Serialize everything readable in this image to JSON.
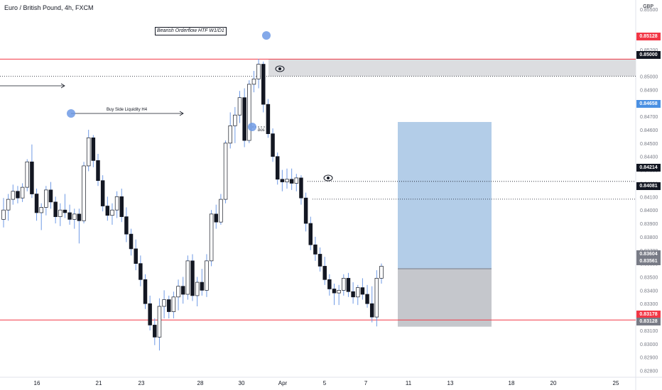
{
  "symbol_title": "Euro / British Pound, 4h, FXCM",
  "currency": "GBP",
  "annotations": {
    "bearish_orderflow": "Bearish Orderflow HTF W1/D1",
    "buy_side_liquidity": "Buy Side Liquidity H4",
    "bos": "bos"
  },
  "price_tags": {
    "red_top": "0.85128",
    "black_top": "0.85000",
    "blue": "0.84658",
    "black_mid1": "0.84214",
    "black_mid2": "0.84081",
    "gray_top": "0.83604",
    "gray_bottom": "0.83561",
    "red_bottom": "0.83178",
    "gray_low": "0.83128"
  },
  "colors": {
    "up_candle": "#ffffff",
    "down_candle": "#131722",
    "wick": "#6f9ae5",
    "red_line": "#f23645",
    "target_zone": "#b3cde8",
    "stop_zone": "#c5c7cc",
    "supply_zone": "#dcdde0",
    "circle_marker": "#6f9ae5"
  },
  "chart_data": {
    "type": "candlestick",
    "title": "Euro / British Pound, 4h, FXCM",
    "ylabel": "GBP",
    "ylim": [
      0.8275,
      0.8557
    ],
    "y_ticks": [
      "0.85500",
      "0.85200",
      "0.85000",
      "0.84900",
      "0.84800",
      "0.84700",
      "0.84600",
      "0.84500",
      "0.84400",
      "0.84300",
      "0.84200",
      "0.84100",
      "0.84000",
      "0.83900",
      "0.83800",
      "0.83700",
      "0.83600",
      "0.83500",
      "0.83400",
      "0.83300",
      "0.83200",
      "0.83100",
      "0.83000",
      "0.82900",
      "0.82800"
    ],
    "x_ticks": [
      "16",
      "21",
      "23",
      "28",
      "30",
      "Apr",
      "5",
      "7",
      "11",
      "13",
      "18",
      "20",
      "25"
    ],
    "horizontal_levels": {
      "upper_red": 0.85128,
      "black_dotted_upper": 0.85,
      "black_dotted_mid1": 0.84214,
      "black_dotted_mid2": 0.84081,
      "lower_red": 0.83178
    },
    "position_tool": {
      "entry": 0.83561,
      "target": 0.84658,
      "stop": 0.83128
    },
    "candles": [
      {
        "o": 0.8393,
        "h": 0.8409,
        "l": 0.8387,
        "c": 0.84
      },
      {
        "o": 0.84,
        "h": 0.8412,
        "l": 0.8392,
        "c": 0.8408
      },
      {
        "o": 0.8408,
        "h": 0.8419,
        "l": 0.8404,
        "c": 0.8414
      },
      {
        "o": 0.8414,
        "h": 0.8418,
        "l": 0.8405,
        "c": 0.8409
      },
      {
        "o": 0.8409,
        "h": 0.842,
        "l": 0.8406,
        "c": 0.8417
      },
      {
        "o": 0.8417,
        "h": 0.8438,
        "l": 0.8414,
        "c": 0.8436
      },
      {
        "o": 0.8436,
        "h": 0.8449,
        "l": 0.8409,
        "c": 0.8412
      },
      {
        "o": 0.8412,
        "h": 0.8416,
        "l": 0.8392,
        "c": 0.8398
      },
      {
        "o": 0.8398,
        "h": 0.8405,
        "l": 0.8385,
        "c": 0.8402
      },
      {
        "o": 0.8402,
        "h": 0.8418,
        "l": 0.8396,
        "c": 0.8415
      },
      {
        "o": 0.8415,
        "h": 0.8421,
        "l": 0.8401,
        "c": 0.8406
      },
      {
        "o": 0.8406,
        "h": 0.841,
        "l": 0.839,
        "c": 0.8395
      },
      {
        "o": 0.8395,
        "h": 0.8405,
        "l": 0.8388,
        "c": 0.84
      },
      {
        "o": 0.84,
        "h": 0.8412,
        "l": 0.8394,
        "c": 0.8398
      },
      {
        "o": 0.8398,
        "h": 0.8404,
        "l": 0.8389,
        "c": 0.8393
      },
      {
        "o": 0.8393,
        "h": 0.8401,
        "l": 0.8386,
        "c": 0.8397
      },
      {
        "o": 0.8397,
        "h": 0.8401,
        "l": 0.8375,
        "c": 0.8392
      },
      {
        "o": 0.8392,
        "h": 0.8436,
        "l": 0.839,
        "c": 0.8433
      },
      {
        "o": 0.8433,
        "h": 0.846,
        "l": 0.8429,
        "c": 0.8454
      },
      {
        "o": 0.8454,
        "h": 0.8456,
        "l": 0.8432,
        "c": 0.8437
      },
      {
        "o": 0.8437,
        "h": 0.8442,
        "l": 0.8418,
        "c": 0.8422
      },
      {
        "o": 0.8422,
        "h": 0.8426,
        "l": 0.8399,
        "c": 0.8403
      },
      {
        "o": 0.8403,
        "h": 0.841,
        "l": 0.8392,
        "c": 0.8396
      },
      {
        "o": 0.8396,
        "h": 0.8405,
        "l": 0.8389,
        "c": 0.84
      },
      {
        "o": 0.84,
        "h": 0.8414,
        "l": 0.8394,
        "c": 0.841
      },
      {
        "o": 0.841,
        "h": 0.8416,
        "l": 0.8391,
        "c": 0.8395
      },
      {
        "o": 0.8395,
        "h": 0.8402,
        "l": 0.8376,
        "c": 0.8382
      },
      {
        "o": 0.8382,
        "h": 0.8386,
        "l": 0.8366,
        "c": 0.8371
      },
      {
        "o": 0.8371,
        "h": 0.8378,
        "l": 0.8355,
        "c": 0.836
      },
      {
        "o": 0.836,
        "h": 0.8366,
        "l": 0.8343,
        "c": 0.8348
      },
      {
        "o": 0.8348,
        "h": 0.8352,
        "l": 0.8326,
        "c": 0.833
      },
      {
        "o": 0.833,
        "h": 0.8336,
        "l": 0.831,
        "c": 0.8314
      },
      {
        "o": 0.8314,
        "h": 0.8319,
        "l": 0.8299,
        "c": 0.8305
      },
      {
        "o": 0.8305,
        "h": 0.8334,
        "l": 0.8295,
        "c": 0.8328
      },
      {
        "o": 0.8328,
        "h": 0.834,
        "l": 0.8319,
        "c": 0.8333
      },
      {
        "o": 0.8333,
        "h": 0.8336,
        "l": 0.8319,
        "c": 0.8324
      },
      {
        "o": 0.8324,
        "h": 0.8339,
        "l": 0.8319,
        "c": 0.8335
      },
      {
        "o": 0.8335,
        "h": 0.8348,
        "l": 0.8325,
        "c": 0.8343
      },
      {
        "o": 0.8343,
        "h": 0.835,
        "l": 0.833,
        "c": 0.8337
      },
      {
        "o": 0.8337,
        "h": 0.8366,
        "l": 0.8333,
        "c": 0.8362
      },
      {
        "o": 0.8362,
        "h": 0.8367,
        "l": 0.8332,
        "c": 0.8336
      },
      {
        "o": 0.8336,
        "h": 0.835,
        "l": 0.8328,
        "c": 0.8346
      },
      {
        "o": 0.8346,
        "h": 0.8356,
        "l": 0.8336,
        "c": 0.834
      },
      {
        "o": 0.834,
        "h": 0.8367,
        "l": 0.8335,
        "c": 0.8362
      },
      {
        "o": 0.8362,
        "h": 0.84,
        "l": 0.8358,
        "c": 0.8397
      },
      {
        "o": 0.8397,
        "h": 0.8404,
        "l": 0.8386,
        "c": 0.8391
      },
      {
        "o": 0.8391,
        "h": 0.8412,
        "l": 0.8389,
        "c": 0.8408
      },
      {
        "o": 0.8408,
        "h": 0.8452,
        "l": 0.8405,
        "c": 0.845
      },
      {
        "o": 0.845,
        "h": 0.8473,
        "l": 0.8446,
        "c": 0.8463
      },
      {
        "o": 0.8463,
        "h": 0.8477,
        "l": 0.845,
        "c": 0.8471
      },
      {
        "o": 0.8471,
        "h": 0.8489,
        "l": 0.8465,
        "c": 0.8484
      },
      {
        "o": 0.8484,
        "h": 0.8491,
        "l": 0.8447,
        "c": 0.8452
      },
      {
        "o": 0.8452,
        "h": 0.8497,
        "l": 0.845,
        "c": 0.8494
      },
      {
        "o": 0.8494,
        "h": 0.8504,
        "l": 0.8488,
        "c": 0.8498
      },
      {
        "o": 0.8498,
        "h": 0.8513,
        "l": 0.8491,
        "c": 0.8509
      },
      {
        "o": 0.8509,
        "h": 0.8511,
        "l": 0.8473,
        "c": 0.8479
      },
      {
        "o": 0.8479,
        "h": 0.8483,
        "l": 0.8454,
        "c": 0.8457
      },
      {
        "o": 0.8457,
        "h": 0.8461,
        "l": 0.8436,
        "c": 0.844
      },
      {
        "o": 0.844,
        "h": 0.8443,
        "l": 0.8419,
        "c": 0.8423
      },
      {
        "o": 0.8423,
        "h": 0.843,
        "l": 0.8414,
        "c": 0.8421
      },
      {
        "o": 0.8421,
        "h": 0.8431,
        "l": 0.8416,
        "c": 0.8423
      },
      {
        "o": 0.8423,
        "h": 0.8431,
        "l": 0.8415,
        "c": 0.842
      },
      {
        "o": 0.842,
        "h": 0.8427,
        "l": 0.8414,
        "c": 0.8424
      },
      {
        "o": 0.8424,
        "h": 0.8426,
        "l": 0.8404,
        "c": 0.8409
      },
      {
        "o": 0.8409,
        "h": 0.8413,
        "l": 0.8384,
        "c": 0.839
      },
      {
        "o": 0.839,
        "h": 0.8395,
        "l": 0.837,
        "c": 0.8374
      },
      {
        "o": 0.8374,
        "h": 0.838,
        "l": 0.8362,
        "c": 0.8367
      },
      {
        "o": 0.8367,
        "h": 0.8372,
        "l": 0.8354,
        "c": 0.8358
      },
      {
        "o": 0.8358,
        "h": 0.8365,
        "l": 0.8344,
        "c": 0.8348
      },
      {
        "o": 0.8348,
        "h": 0.8352,
        "l": 0.8336,
        "c": 0.8341
      },
      {
        "o": 0.8341,
        "h": 0.8345,
        "l": 0.8329,
        "c": 0.8338
      },
      {
        "o": 0.8338,
        "h": 0.8344,
        "l": 0.8329,
        "c": 0.834
      },
      {
        "o": 0.834,
        "h": 0.8352,
        "l": 0.8336,
        "c": 0.8349
      },
      {
        "o": 0.8349,
        "h": 0.8353,
        "l": 0.8335,
        "c": 0.8339
      },
      {
        "o": 0.8339,
        "h": 0.8346,
        "l": 0.833,
        "c": 0.8335
      },
      {
        "o": 0.8335,
        "h": 0.8344,
        "l": 0.8329,
        "c": 0.8342
      },
      {
        "o": 0.8342,
        "h": 0.8349,
        "l": 0.8333,
        "c": 0.8337
      },
      {
        "o": 0.8337,
        "h": 0.8344,
        "l": 0.8327,
        "c": 0.833
      },
      {
        "o": 0.833,
        "h": 0.8343,
        "l": 0.8316,
        "c": 0.832
      },
      {
        "o": 0.832,
        "h": 0.8355,
        "l": 0.8313,
        "c": 0.8349
      },
      {
        "o": 0.8349,
        "h": 0.836,
        "l": 0.8345,
        "c": 0.8358
      }
    ]
  }
}
